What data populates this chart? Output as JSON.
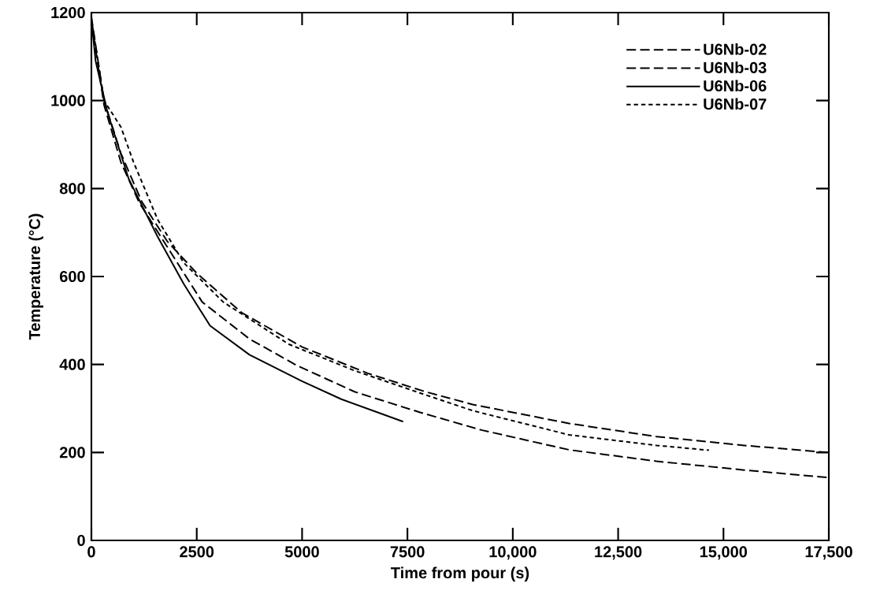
{
  "chart_data": {
    "type": "line",
    "xlabel": "Time from pour (s)",
    "ylabel": "Temperature (°C)",
    "xlim": [
      0,
      17500
    ],
    "ylim": [
      0,
      1200
    ],
    "xticks": [
      0,
      2500,
      5000,
      7500,
      {
        "value": 10000,
        "label": "10,000"
      },
      {
        "value": 12500,
        "label": "12,500"
      },
      {
        "value": 15000,
        "label": "15,000"
      },
      {
        "value": 17500,
        "label": "17,500"
      }
    ],
    "yticks": [
      0,
      200,
      400,
      600,
      800,
      1000,
      1200
    ],
    "legend": "top right",
    "series": [
      {
        "name": "U6Nb-02",
        "color": "#000000",
        "line_style": "dashed",
        "x": [
          0,
          300,
          700,
          1196,
          1800,
          2505,
          3565,
          4997,
          6556,
          7927,
          9048,
          11333,
          13410,
          15487,
          17461
        ],
        "values": [
          1190,
          1000,
          880,
          770,
          680,
          607,
          518,
          440,
          380,
          338,
          309,
          266,
          236,
          216,
          200
        ]
      },
      {
        "name": "U6Nb-03",
        "color": "#000000",
        "line_style": "dashed",
        "x": [
          0,
          300,
          700,
          1134,
          1882,
          2630,
          3752,
          4873,
          6244,
          7801,
          9256,
          11333,
          13410,
          15487,
          17461
        ],
        "values": [
          1180,
          990,
          860,
          768,
          655,
          542,
          458,
          398,
          338,
          291,
          251,
          206,
          180,
          160,
          143
        ]
      },
      {
        "name": "U6Nb-06",
        "color": "#000000",
        "line_style": "solid",
        "x": [
          0,
          100,
          386,
          885,
          1570,
          2193,
          2817,
          3752,
          4997,
          5932,
          7397
        ],
        "values": [
          1185,
          1090,
          972,
          822,
          691,
          583,
          488,
          422,
          362,
          321,
          270
        ]
      },
      {
        "name": "U6Nb-07",
        "color": "#000000",
        "line_style": "dotted",
        "x": [
          0,
          300,
          700,
          1000,
          1570,
          2193,
          3128,
          4686,
          6244,
          7801,
          9048,
          11333,
          13410,
          14657
        ],
        "values": [
          1185,
          1000,
          940,
          860,
          730,
          631,
          542,
          446,
          386,
          335,
          295,
          240,
          216,
          205
        ]
      }
    ]
  }
}
